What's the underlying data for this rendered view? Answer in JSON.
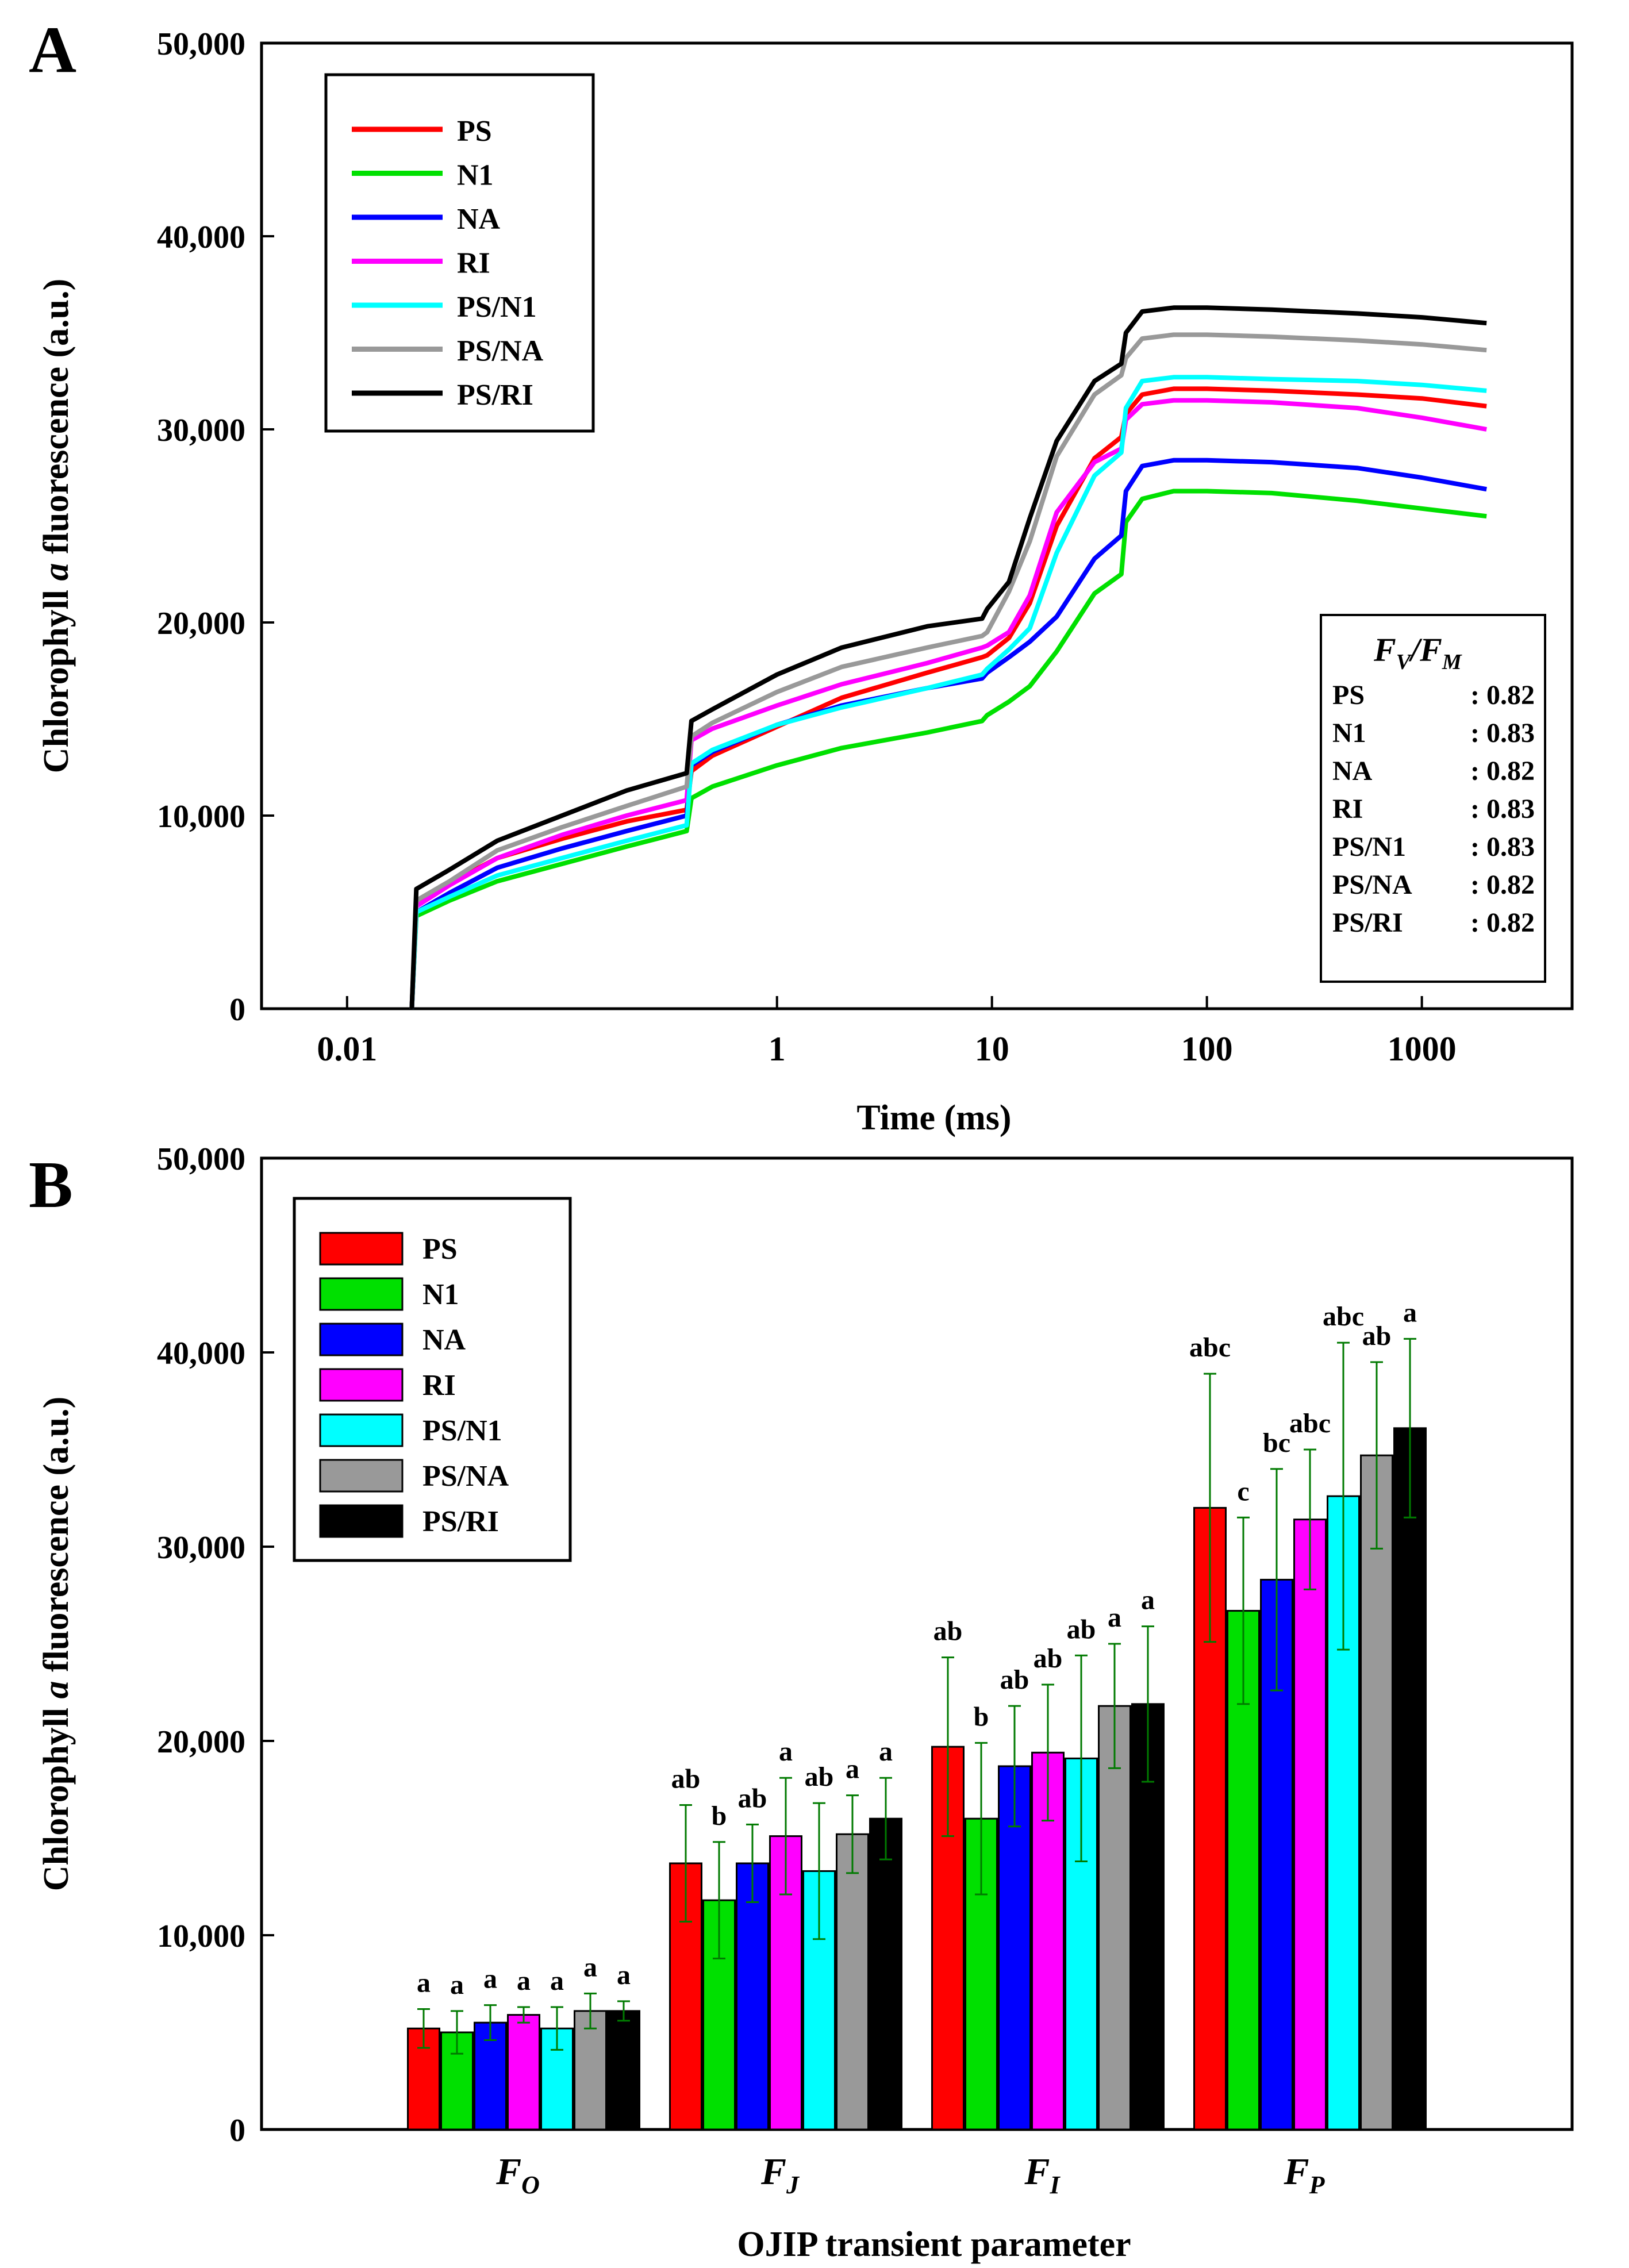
{
  "colors": {
    "PS": "#ff0000",
    "N1": "#00e000",
    "NA": "#0000ff",
    "RI": "#ff00ff",
    "PS/N1": "#00ffff",
    "PS/NA": "#999999",
    "PS/RI": "#000000",
    "error_bar": "#007a00"
  },
  "chart_data": [
    {
      "panel_label": "A",
      "type": "line",
      "title": "",
      "xlabel": "Time (ms)",
      "ylabel": "Chlorophyll a fluorescence (a.u.)",
      "ylabel_parts": [
        "Chlorophyll ",
        "a",
        " fluorescence (a.u.)"
      ],
      "x_scale": "log",
      "xlim": [
        0.004,
        5000
      ],
      "ylim": [
        0,
        50000
      ],
      "x_ticks": [
        0.01,
        1,
        10,
        100,
        1000
      ],
      "x_tick_labels": [
        "0.01",
        "1",
        "10",
        "100",
        "1000"
      ],
      "y_ticks": [
        0,
        10000,
        20000,
        30000,
        40000,
        50000
      ],
      "y_tick_labels": [
        "0",
        "10,000",
        "20,000",
        "30,000",
        "40,000",
        "50,000"
      ],
      "legend": [
        "PS",
        "N1",
        "NA",
        "RI",
        "PS/N1",
        "PS/NA",
        "PS/RI"
      ],
      "legend_position": "top-left",
      "x": [
        0.02,
        0.021,
        0.03,
        0.05,
        0.1,
        0.2,
        0.38,
        0.4,
        0.5,
        1,
        2,
        5,
        9,
        9.5,
        12,
        15,
        20,
        30,
        40,
        42,
        50,
        70,
        100,
        200,
        500,
        1000,
        2000
      ],
      "series": [
        {
          "name": "PS",
          "values": [
            0,
            5600,
            6500,
            7800,
            8800,
            9700,
            10300,
            12300,
            13100,
            14600,
            16100,
            17400,
            18200,
            18300,
            19200,
            21000,
            25000,
            28500,
            29600,
            30800,
            31800,
            32100,
            32100,
            32000,
            31800,
            31600,
            31200
          ]
        },
        {
          "name": "N1",
          "values": [
            0,
            4800,
            5600,
            6600,
            7500,
            8400,
            9200,
            10900,
            11500,
            12600,
            13500,
            14300,
            14900,
            15200,
            15900,
            16700,
            18500,
            21500,
            22500,
            25200,
            26400,
            26800,
            26800,
            26700,
            26300,
            25900,
            25500
          ]
        },
        {
          "name": "NA",
          "values": [
            0,
            5000,
            6000,
            7300,
            8300,
            9200,
            10000,
            12600,
            13300,
            14700,
            15700,
            16600,
            17100,
            17400,
            18200,
            19000,
            20300,
            23300,
            24500,
            26800,
            28100,
            28400,
            28400,
            28300,
            28000,
            27500,
            26900
          ]
        },
        {
          "name": "RI",
          "values": [
            0,
            5300,
            6400,
            7800,
            9000,
            10000,
            10800,
            13900,
            14500,
            15700,
            16800,
            17900,
            18700,
            18800,
            19500,
            21400,
            25700,
            28300,
            29000,
            30500,
            31300,
            31500,
            31500,
            31400,
            31100,
            30600,
            30000
          ]
        },
        {
          "name": "PS/N1",
          "values": [
            0,
            5000,
            5800,
            6900,
            7800,
            8700,
            9500,
            12700,
            13400,
            14700,
            15600,
            16600,
            17300,
            17600,
            18600,
            19700,
            23600,
            27600,
            28800,
            31100,
            32500,
            32700,
            32700,
            32600,
            32500,
            32300,
            32000
          ]
        },
        {
          "name": "PS/NA",
          "values": [
            0,
            5600,
            6600,
            8200,
            9400,
            10500,
            11500,
            14100,
            14800,
            16400,
            17700,
            18700,
            19300,
            19500,
            21600,
            24200,
            28600,
            31800,
            32800,
            33700,
            34700,
            34900,
            34900,
            34800,
            34600,
            34400,
            34100
          ]
        },
        {
          "name": "PS/RI",
          "values": [
            0,
            6200,
            7200,
            8700,
            10000,
            11300,
            12200,
            14900,
            15500,
            17300,
            18700,
            19800,
            20200,
            20700,
            22100,
            25400,
            29400,
            32500,
            33400,
            35000,
            36100,
            36300,
            36300,
            36200,
            36000,
            35800,
            35500
          ]
        }
      ],
      "inset_table": {
        "title_main": "F",
        "title_sub_v": "V",
        "title_sub_m": "M",
        "rows": [
          {
            "label": "PS",
            "value": ": 0.82"
          },
          {
            "label": "N1",
            "value": ": 0.83"
          },
          {
            "label": "NA",
            "value": ": 0.82"
          },
          {
            "label": "RI",
            "value": ": 0.83"
          },
          {
            "label": "PS/N1",
            "value": ": 0.83"
          },
          {
            "label": "PS/NA",
            "value": ": 0.82"
          },
          {
            "label": "PS/RI",
            "value": ": 0.82"
          }
        ]
      }
    },
    {
      "panel_label": "B",
      "type": "bar",
      "title": "",
      "xlabel": "OJIP transient parameter",
      "ylabel": "Chlorophyll a fluorescence (a.u.)",
      "ylabel_parts": [
        "Chlorophyll ",
        "a",
        " fluorescence (a.u.)"
      ],
      "ylim": [
        0,
        50000
      ],
      "y_ticks": [
        0,
        10000,
        20000,
        30000,
        40000,
        50000
      ],
      "y_tick_labels": [
        "0",
        "10,000",
        "20,000",
        "30,000",
        "40,000",
        "50,000"
      ],
      "categories": [
        {
          "main": "F",
          "sub": "O"
        },
        {
          "main": "F",
          "sub": "J"
        },
        {
          "main": "F",
          "sub": "I"
        },
        {
          "main": "F",
          "sub": "P"
        }
      ],
      "legend": [
        "PS",
        "N1",
        "NA",
        "RI",
        "PS/N1",
        "PS/NA",
        "PS/RI"
      ],
      "legend_position": "top-left",
      "series": [
        {
          "name": "PS",
          "values": [
            5200,
            13700,
            19700,
            32000
          ],
          "errors": [
            1000,
            3000,
            4600,
            6900
          ],
          "letters": [
            "a",
            "ab",
            "ab",
            "abc"
          ]
        },
        {
          "name": "N1",
          "values": [
            5000,
            11800,
            16000,
            26700
          ],
          "errors": [
            1100,
            3000,
            3900,
            4800
          ],
          "letters": [
            "a",
            "b",
            "b",
            "c"
          ]
        },
        {
          "name": "NA",
          "values": [
            5500,
            13700,
            18700,
            28300
          ],
          "errors": [
            900,
            2000,
            3100,
            5700
          ],
          "letters": [
            "a",
            "ab",
            "ab",
            "bc"
          ]
        },
        {
          "name": "RI",
          "values": [
            5900,
            15100,
            19400,
            31400
          ],
          "errors": [
            400,
            3000,
            3500,
            3600
          ],
          "letters": [
            "a",
            "a",
            "ab",
            "abc"
          ]
        },
        {
          "name": "PS/N1",
          "values": [
            5200,
            13300,
            19100,
            32600
          ],
          "errors": [
            1100,
            3500,
            5300,
            7900
          ],
          "letters": [
            "a",
            "ab",
            "ab",
            "abc"
          ]
        },
        {
          "name": "PS/NA",
          "values": [
            6100,
            15200,
            21800,
            34700
          ],
          "errors": [
            900,
            2000,
            3200,
            4800
          ],
          "letters": [
            "a",
            "a",
            "a",
            "ab"
          ]
        },
        {
          "name": "PS/RI",
          "values": [
            6100,
            16000,
            21900,
            36100
          ],
          "errors": [
            500,
            2100,
            4000,
            4600
          ],
          "letters": [
            "a",
            "a",
            "a",
            "a"
          ]
        }
      ]
    }
  ]
}
